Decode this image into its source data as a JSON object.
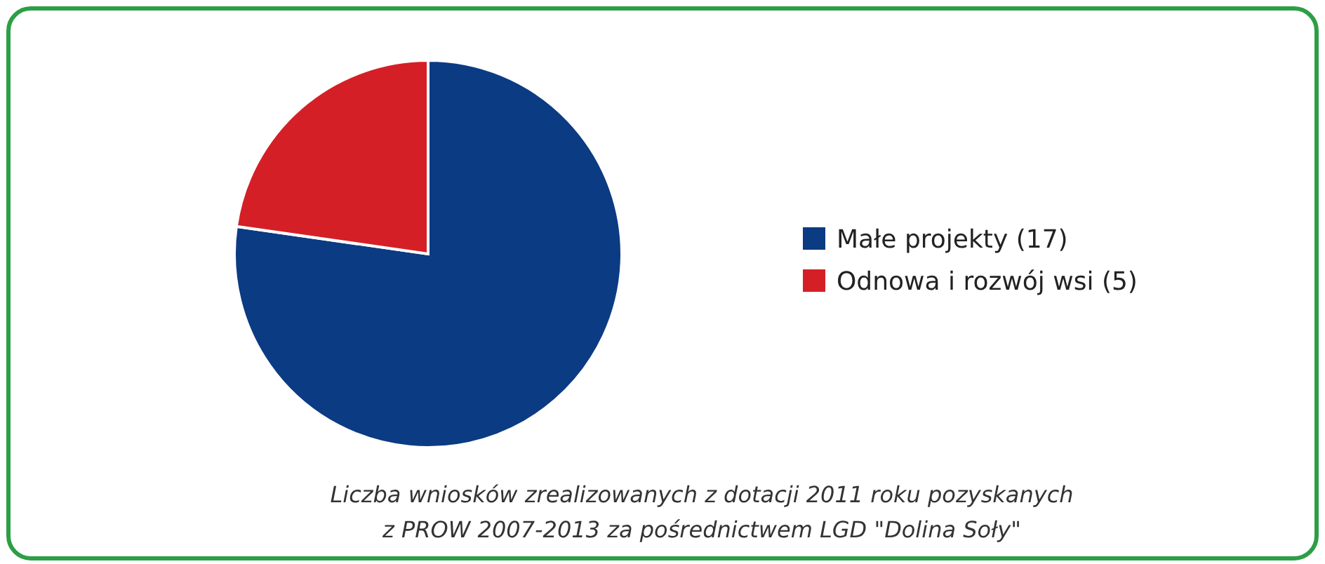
{
  "chart_data": {
    "type": "pie",
    "categories": [
      "Małe projekty (17)",
      "Odnowa i rozwój wsi (5)"
    ],
    "values": [
      17,
      5
    ],
    "colors": [
      "#0b3b82",
      "#d51f26"
    ],
    "legend": "right",
    "annotations": [
      "Liczba wniosków zrealizowanych z dotacji 2011 roku pozyskanych",
      "z PROW 2007-2013 za pośrednictwem  LGD \"Dolina Soły\""
    ]
  }
}
